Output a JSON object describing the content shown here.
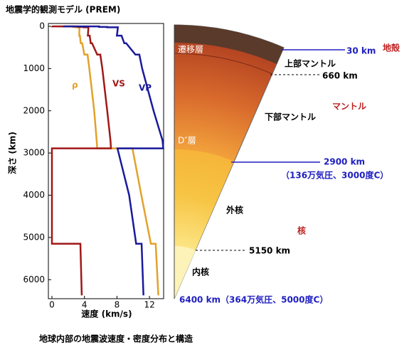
{
  "chart_data": {
    "type": "line",
    "title": "地震学的観測モデル (PREM)",
    "ylabel": "深さ (km)",
    "xlabel": "速度 (km/s)",
    "y": [
      0,
      3,
      3,
      15,
      15,
      24,
      24,
      80,
      220,
      220,
      400,
      400,
      670,
      670,
      1000,
      2000,
      2700,
      2891,
      2891,
      4000,
      5150,
      5150,
      6371
    ],
    "series": [
      {
        "name": "ρ",
        "color": "#e3a12b",
        "values": [
          1.02,
          1.02,
          2.6,
          2.6,
          2.9,
          2.9,
          3.38,
          3.38,
          3.36,
          3.44,
          3.54,
          3.72,
          3.99,
          4.38,
          4.6,
          5.2,
          5.5,
          5.57,
          9.9,
          11.0,
          12.17,
          12.76,
          13.09
        ]
      },
      {
        "name": "VS",
        "color": "#a01818",
        "values": [
          0,
          0,
          3.2,
          3.2,
          3.9,
          3.9,
          4.49,
          4.47,
          4.42,
          4.64,
          4.77,
          4.93,
          5.57,
          5.95,
          6.2,
          6.8,
          7.2,
          7.26,
          0,
          0,
          0,
          3.5,
          3.67
        ]
      },
      {
        "name": "VP",
        "color": "#1a1a9c",
        "values": [
          1.45,
          1.45,
          5.8,
          5.8,
          6.8,
          6.8,
          8.11,
          8.08,
          7.99,
          8.56,
          8.9,
          9.13,
          10.27,
          10.75,
          11.1,
          12.5,
          13.6,
          13.7,
          8.06,
          9.5,
          10.36,
          11.03,
          11.26
        ]
      }
    ],
    "xlim": [
      0,
      14
    ],
    "xticks": [
      0,
      4,
      8,
      12
    ],
    "ylim": [
      0,
      6450
    ],
    "yticks": [
      0,
      1000,
      2000,
      3000,
      4000,
      5000,
      6000
    ],
    "y_reversed": true
  },
  "diagram": {
    "labels": [
      "遷移層",
      "30 km",
      "地殻",
      "上部マントル",
      "660 km",
      "マントル",
      "下部マントル",
      "D″層",
      "2900 km",
      "（136万気圧、3000度C）",
      "外核",
      "核",
      "5150 km",
      "内核",
      "6400 km（364万気圧、5000度C）"
    ]
  },
  "caption": "地球内部の地震波速度・密度分布と構造"
}
